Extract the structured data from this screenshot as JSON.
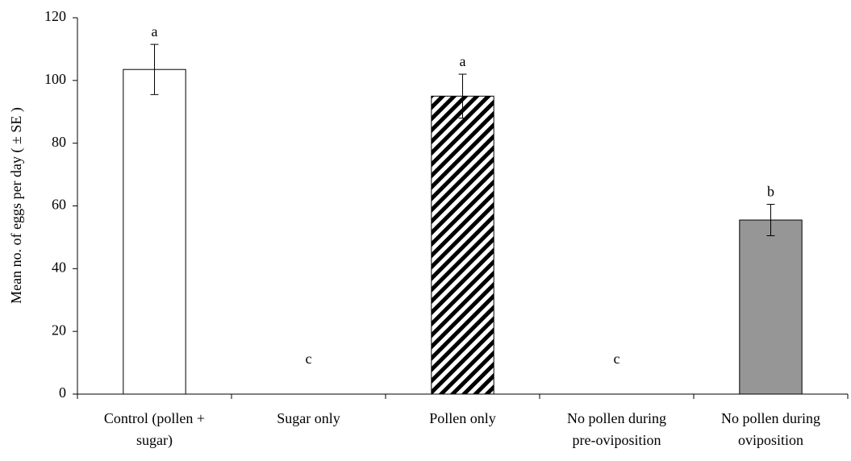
{
  "chart_data": {
    "type": "bar",
    "y_label": "Mean no. of eggs per day ( ± SE )",
    "categories": [
      [
        "Control (pollen +",
        "sugar)"
      ],
      [
        "Sugar only"
      ],
      [
        "Pollen only"
      ],
      [
        "No pollen during",
        "pre-oviposition"
      ],
      [
        "No pollen during",
        "oviposition"
      ]
    ],
    "values": [
      103.5,
      0,
      95,
      0,
      55.5
    ],
    "errors": [
      8,
      null,
      7,
      null,
      5
    ],
    "letters": [
      "a",
      "c",
      "a",
      "c",
      "b"
    ],
    "colors": [
      "#ffffff",
      "#ffffff",
      "#000000",
      "#ffffff",
      "#969696"
    ],
    "hatch": [
      false,
      false,
      true,
      false,
      false
    ],
    "ylim": [
      0,
      120
    ],
    "yticks": [
      0,
      20,
      40,
      60,
      80,
      100,
      120
    ],
    "grid": false
  }
}
